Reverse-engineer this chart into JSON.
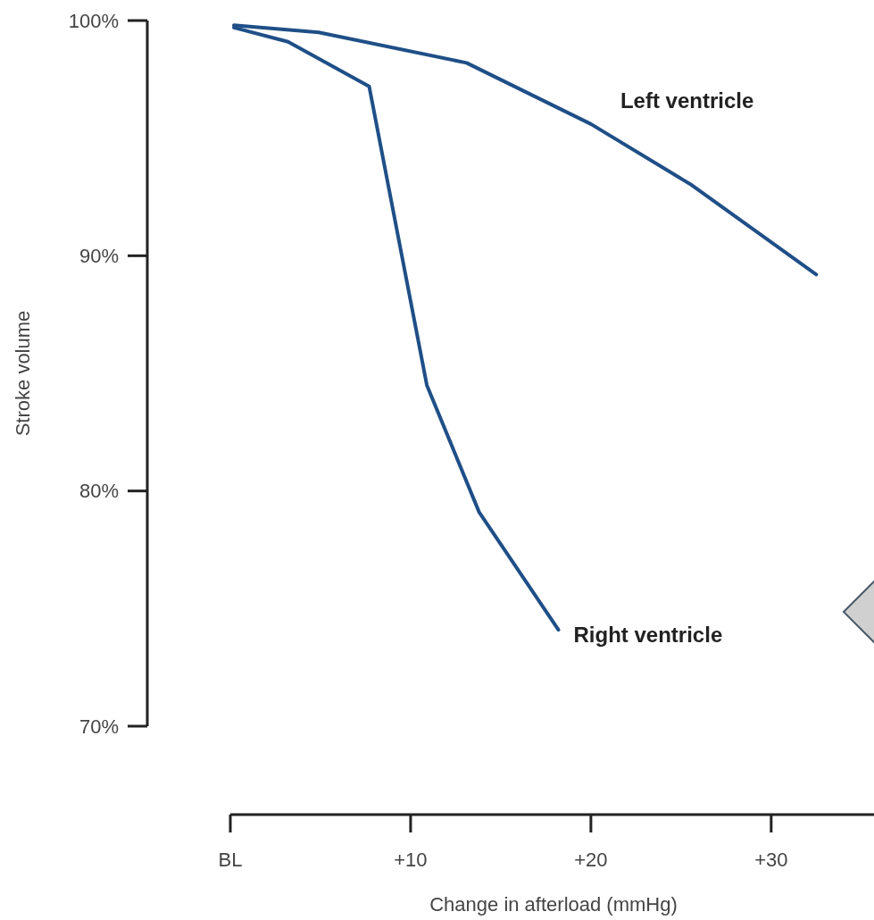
{
  "chart_data": {
    "type": "line",
    "xlabel": "Change in afterload (mmHg)",
    "ylabel": "Stroke volume",
    "xlim": [
      0,
      36
    ],
    "xticks": [
      {
        "value": 0,
        "label": "BL"
      },
      {
        "value": 10,
        "label": "+10"
      },
      {
        "value": 20,
        "label": "+20"
      },
      {
        "value": 30,
        "label": "+30"
      }
    ],
    "ylim": [
      70,
      100
    ],
    "yticks": [
      {
        "value": 70,
        "label": "70%"
      },
      {
        "value": 80,
        "label": "80%"
      },
      {
        "value": 90,
        "label": "90%"
      },
      {
        "value": 100,
        "label": "100%"
      }
    ],
    "grid": false,
    "marker": "none",
    "line_style": "solid",
    "series": [
      {
        "name": "Left ventricle",
        "color": "#1f4f87",
        "x": [
          0.2,
          4.9,
          13.1,
          20,
          25.6,
          32.5
        ],
        "values": [
          99.8,
          99.5,
          98.2,
          95.6,
          93.0,
          89.2
        ]
      },
      {
        "name": "Right ventricle",
        "color": "#1f4f87",
        "x": [
          0.2,
          3.2,
          7.7,
          10.9,
          13.8,
          18.2
        ],
        "values": [
          99.7,
          99.1,
          97.2,
          84.5,
          79.1,
          74.1
        ]
      }
    ]
  }
}
